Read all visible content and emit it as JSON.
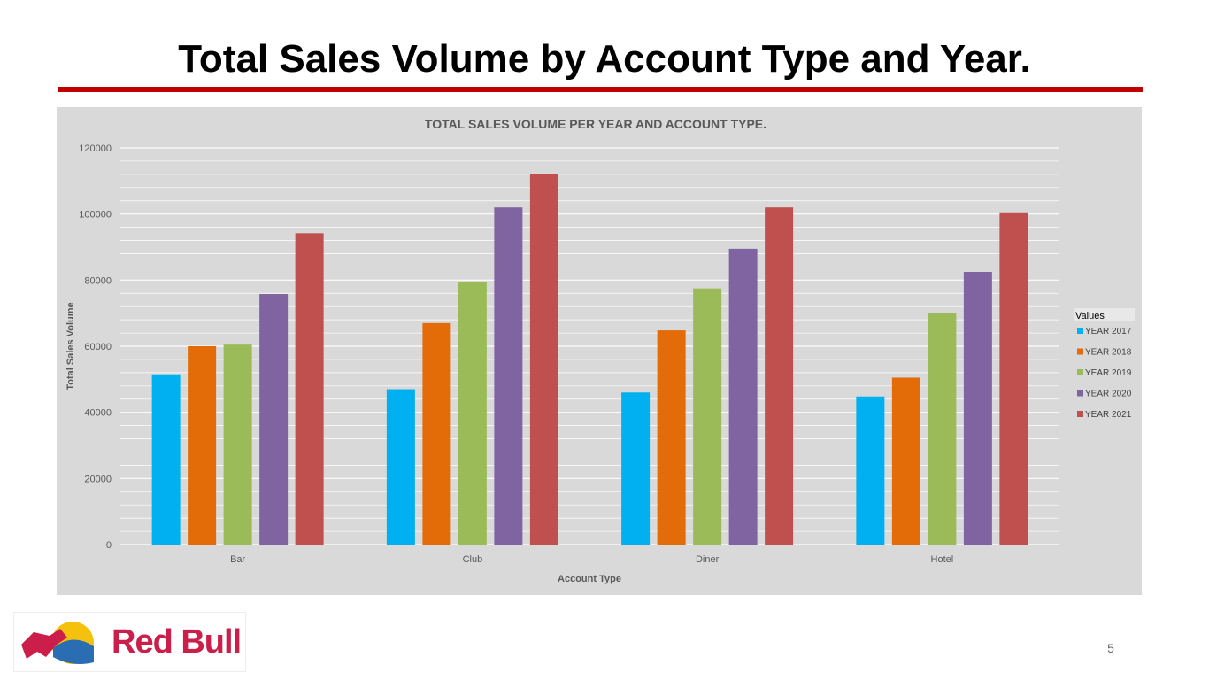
{
  "slide": {
    "title": "Total Sales Volume by Account Type and Year.",
    "page_number": "5",
    "accent_color": "#c00000"
  },
  "logo": {
    "text": "Red Bull",
    "color": "#cc1e4a"
  },
  "chart_data": {
    "type": "bar",
    "title": "TOTAL SALES VOLUME PER YEAR AND ACCOUNT TYPE.",
    "xlabel": "Account Type",
    "ylabel": "Total Sales Volume",
    "categories": [
      "Bar",
      "Club",
      "Diner",
      "Hotel"
    ],
    "series": [
      {
        "name": "YEAR 2017",
        "color": "#00b0f0",
        "values": [
          51500,
          47000,
          46000,
          44800
        ]
      },
      {
        "name": "YEAR 2018",
        "color": "#e36c09",
        "values": [
          60000,
          67000,
          64800,
          50500
        ]
      },
      {
        "name": "YEAR 2019",
        "color": "#9bbb59",
        "values": [
          60500,
          79500,
          77500,
          70000
        ]
      },
      {
        "name": "YEAR 2020",
        "color": "#8064a2",
        "values": [
          75800,
          102000,
          89500,
          82500
        ]
      },
      {
        "name": "YEAR 2021",
        "color": "#c0504d",
        "values": [
          94200,
          112000,
          102000,
          100500
        ]
      }
    ],
    "ylim": [
      0,
      120000
    ],
    "yticks": [
      "0",
      "20000",
      "40000",
      "60000",
      "80000",
      "100000",
      "120000"
    ],
    "legend_title": "Values",
    "legend_position": "right",
    "grid": true,
    "background": "#d9d9d9"
  }
}
